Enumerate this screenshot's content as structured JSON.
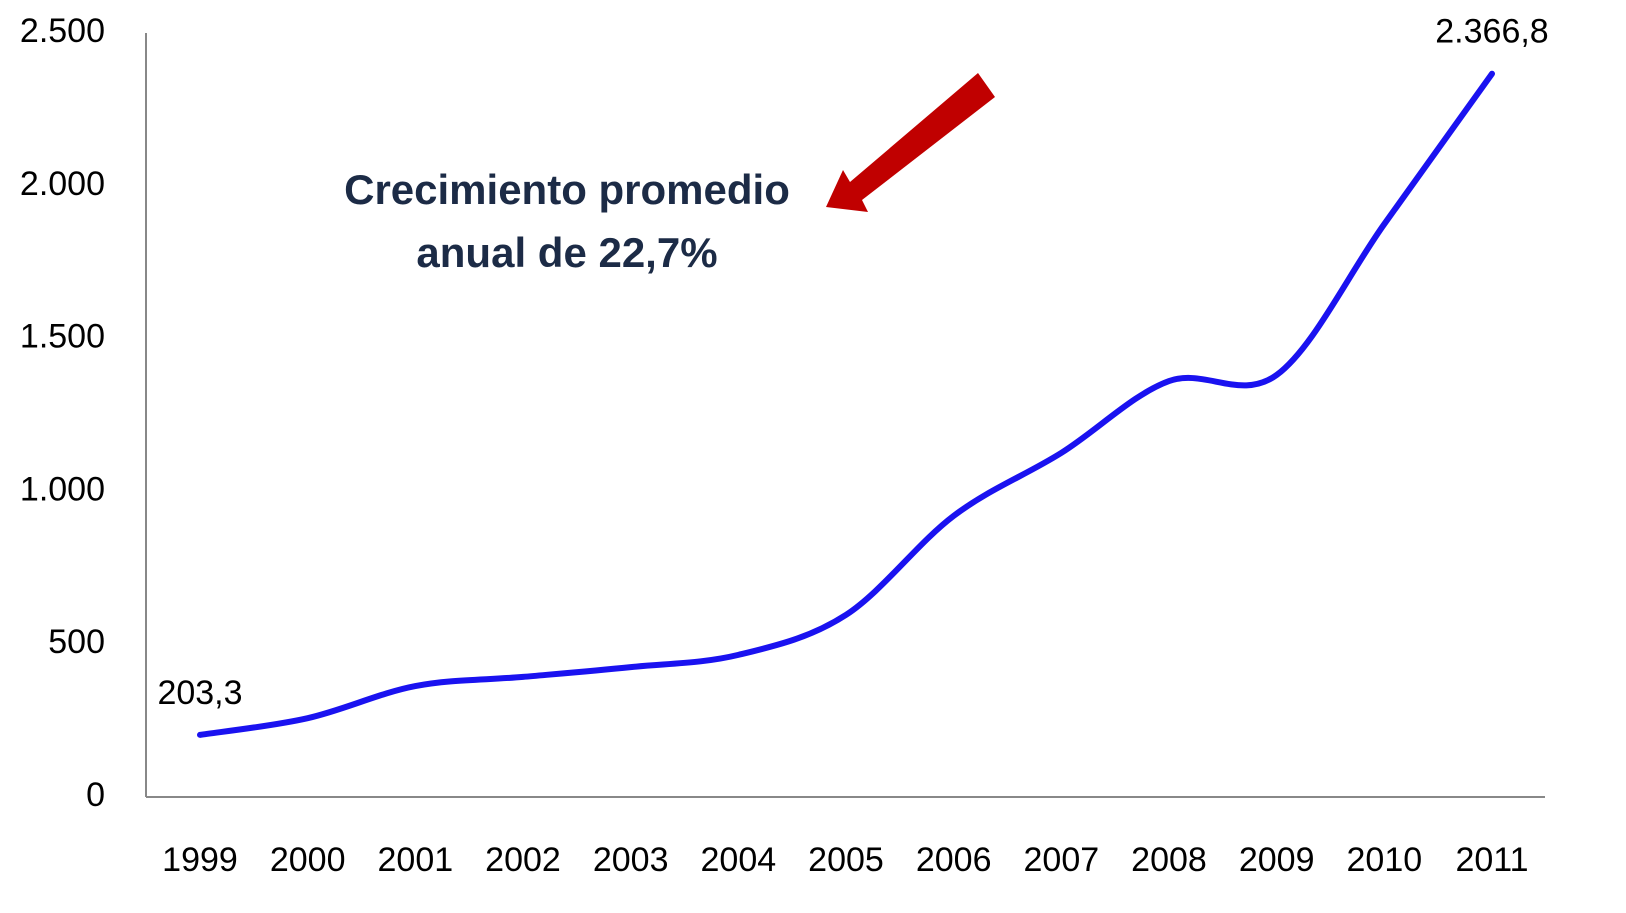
{
  "chart_data": {
    "type": "line",
    "categories": [
      "1999",
      "2000",
      "2001",
      "2002",
      "2003",
      "2004",
      "2005",
      "2006",
      "2007",
      "2008",
      "2009",
      "2010",
      "2011"
    ],
    "series": [
      {
        "color": "#1a12f0",
        "values": [
          203.3,
          258,
          363,
          393,
          425,
          465,
          596,
          920,
          1126,
          1361,
          1381,
          1875,
          2366.8
        ],
        "value_labels": [
          "203,3",
          null,
          null,
          null,
          null,
          null,
          null,
          null,
          null,
          null,
          null,
          null,
          "2.366,8"
        ]
      }
    ],
    "ylim": [
      0,
      2500
    ],
    "yticks": [
      0,
      500,
      {
        "value": 1000,
        "label": "1.000"
      },
      {
        "value": 1500,
        "label": "1.500"
      },
      {
        "value": 2000,
        "label": "2.000"
      },
      {
        "value": 2500,
        "label": "2.500"
      }
    ],
    "grid": false,
    "annotation": [
      "Crecimiento promedio",
      "anual de  22,7%"
    ]
  }
}
